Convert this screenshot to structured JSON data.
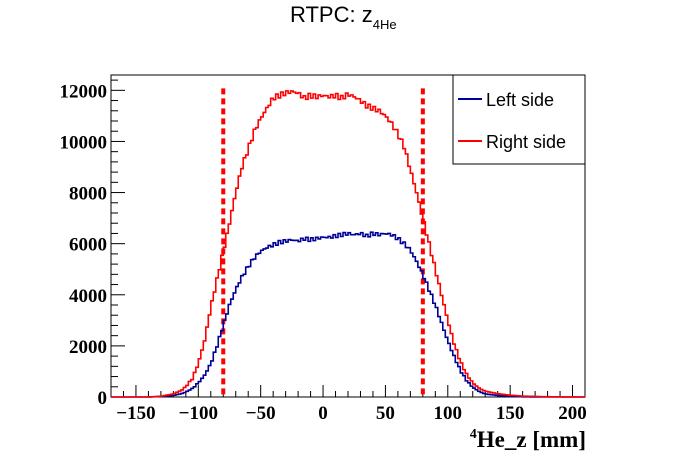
{
  "chart_data": {
    "type": "line",
    "title": "RTPC: z",
    "title_subscript": "4He",
    "xlabel_superscript": "4",
    "xlabel": "He_z [mm]",
    "ylabel": "",
    "xlim": [
      -170,
      210
    ],
    "ylim": [
      0,
      12600
    ],
    "x_ticks": [
      -150,
      -100,
      -50,
      0,
      50,
      100,
      150,
      200
    ],
    "y_ticks": [
      0,
      2000,
      4000,
      6000,
      8000,
      10000,
      12000
    ],
    "x_tick_labels": [
      "−150",
      "−100",
      "−50",
      "0",
      "50",
      "100",
      "150",
      "200"
    ],
    "y_tick_labels": [
      "0",
      "2000",
      "4000",
      "6000",
      "8000",
      "10000",
      "12000"
    ],
    "grid": false,
    "legend_position": "top-right",
    "cut_lines": {
      "x": [
        -80,
        80
      ],
      "color": "#ff0000",
      "style": "dotted"
    },
    "series": [
      {
        "name": "Left side",
        "color": "#000099",
        "points": [
          [
            -170,
            0
          ],
          [
            -140,
            0
          ],
          [
            -130,
            20
          ],
          [
            -120,
            60
          ],
          [
            -112,
            150
          ],
          [
            -105,
            320
          ],
          [
            -100,
            550
          ],
          [
            -95,
            850
          ],
          [
            -90,
            1300
          ],
          [
            -85,
            2000
          ],
          [
            -80,
            2800
          ],
          [
            -75,
            3600
          ],
          [
            -70,
            4200
          ],
          [
            -65,
            4700
          ],
          [
            -60,
            5100
          ],
          [
            -55,
            5450
          ],
          [
            -50,
            5700
          ],
          [
            -45,
            5850
          ],
          [
            -40,
            5950
          ],
          [
            -35,
            6050
          ],
          [
            -30,
            6100
          ],
          [
            -25,
            6150
          ],
          [
            -20,
            6100
          ],
          [
            -15,
            6200
          ],
          [
            -10,
            6150
          ],
          [
            -5,
            6200
          ],
          [
            0,
            6250
          ],
          [
            5,
            6250
          ],
          [
            10,
            6300
          ],
          [
            15,
            6350
          ],
          [
            20,
            6400
          ],
          [
            25,
            6350
          ],
          [
            30,
            6400
          ],
          [
            35,
            6300
          ],
          [
            40,
            6400
          ],
          [
            45,
            6350
          ],
          [
            50,
            6400
          ],
          [
            55,
            6350
          ],
          [
            60,
            6200
          ],
          [
            65,
            6000
          ],
          [
            70,
            5750
          ],
          [
            75,
            5300
          ],
          [
            80,
            4800
          ],
          [
            85,
            4200
          ],
          [
            90,
            3600
          ],
          [
            95,
            2900
          ],
          [
            100,
            2200
          ],
          [
            105,
            1600
          ],
          [
            110,
            1050
          ],
          [
            115,
            650
          ],
          [
            120,
            380
          ],
          [
            125,
            220
          ],
          [
            130,
            120
          ],
          [
            140,
            60
          ],
          [
            150,
            25
          ],
          [
            160,
            10
          ],
          [
            170,
            0
          ],
          [
            210,
            0
          ]
        ]
      },
      {
        "name": "Right side",
        "color": "#ff0000",
        "points": [
          [
            -170,
            0
          ],
          [
            -140,
            0
          ],
          [
            -130,
            30
          ],
          [
            -120,
            120
          ],
          [
            -112,
            300
          ],
          [
            -105,
            700
          ],
          [
            -100,
            1300
          ],
          [
            -95,
            2200
          ],
          [
            -90,
            3500
          ],
          [
            -85,
            4600
          ],
          [
            -80,
            5700
          ],
          [
            -75,
            6800
          ],
          [
            -70,
            8000
          ],
          [
            -65,
            9000
          ],
          [
            -60,
            9700
          ],
          [
            -55,
            10400
          ],
          [
            -50,
            10900
          ],
          [
            -45,
            11300
          ],
          [
            -40,
            11700
          ],
          [
            -35,
            11800
          ],
          [
            -30,
            11900
          ],
          [
            -25,
            11950
          ],
          [
            -20,
            11900
          ],
          [
            -15,
            11700
          ],
          [
            -10,
            11800
          ],
          [
            -5,
            11750
          ],
          [
            0,
            11800
          ],
          [
            5,
            11750
          ],
          [
            10,
            11800
          ],
          [
            15,
            11700
          ],
          [
            20,
            11850
          ],
          [
            25,
            11750
          ],
          [
            30,
            11600
          ],
          [
            35,
            11400
          ],
          [
            40,
            11300
          ],
          [
            45,
            11200
          ],
          [
            50,
            11000
          ],
          [
            55,
            10700
          ],
          [
            60,
            10300
          ],
          [
            65,
            9800
          ],
          [
            70,
            8900
          ],
          [
            75,
            8000
          ],
          [
            80,
            7000
          ],
          [
            85,
            6000
          ],
          [
            90,
            5000
          ],
          [
            95,
            4000
          ],
          [
            100,
            3000
          ],
          [
            105,
            2100
          ],
          [
            110,
            1400
          ],
          [
            115,
            900
          ],
          [
            120,
            550
          ],
          [
            125,
            350
          ],
          [
            130,
            230
          ],
          [
            140,
            130
          ],
          [
            150,
            70
          ],
          [
            160,
            35
          ],
          [
            175,
            15
          ],
          [
            190,
            5
          ],
          [
            210,
            0
          ]
        ]
      }
    ]
  }
}
